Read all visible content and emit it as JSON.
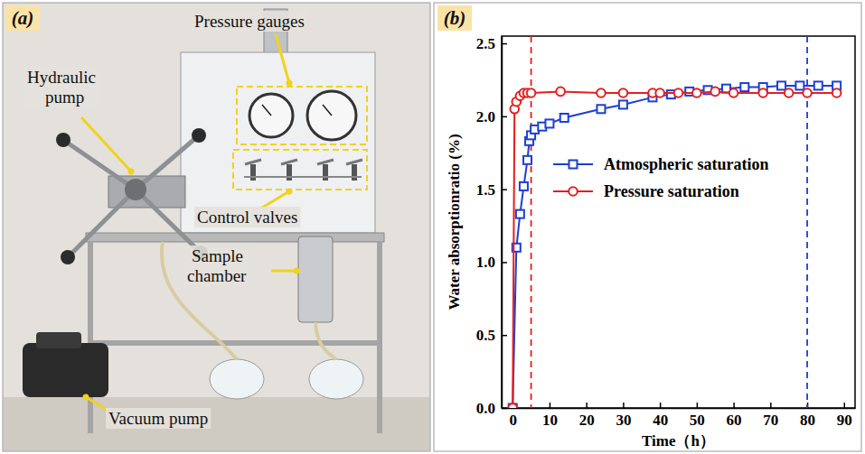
{
  "photo_panel": {
    "panel_label": "(a)",
    "labels": [
      "Pressure gauges",
      "Hydraulic pump",
      "Control valves",
      "Sample chamber",
      "Vacuum pump"
    ]
  },
  "chart_data": {
    "type": "line",
    "panel_label": "(b)",
    "x_label": "Time（h）",
    "y_label": "Water absorptionratio (%)",
    "xlim": [
      -3,
      93
    ],
    "xticks": [
      0,
      10,
      20,
      30,
      40,
      50,
      60,
      70,
      80,
      90
    ],
    "ylim": [
      0,
      2.55
    ],
    "yticks": [
      {
        "value": 0,
        "label": "0.0"
      },
      0.5,
      {
        "value": 1,
        "label": "1.0"
      },
      1.5,
      {
        "value": 2,
        "label": "2.0"
      },
      2.5
    ],
    "legend": "center",
    "grid": false,
    "series": [
      {
        "name": "Atmospheric saturation",
        "color": "#1c3fd6",
        "marker": "square",
        "line_style": "solid",
        "x": [
          0,
          1,
          2,
          3,
          4,
          4.5,
          5,
          6,
          8,
          10,
          14,
          24,
          30,
          38,
          43,
          48,
          53,
          58,
          63,
          68,
          73,
          78,
          83,
          88
        ],
        "values": [
          0,
          1.1,
          1.33,
          1.52,
          1.7,
          1.83,
          1.87,
          1.91,
          1.93,
          1.95,
          1.99,
          2.05,
          2.08,
          2.13,
          2.15,
          2.17,
          2.18,
          2.19,
          2.2,
          2.2,
          2.21,
          2.21,
          2.21,
          2.21
        ]
      },
      {
        "name": "Pressure saturation",
        "color": "#e51e1e",
        "marker": "circle",
        "line_style": "solid",
        "x": [
          0,
          0.5,
          1,
          2,
          3,
          4,
          5,
          13,
          24,
          30,
          38,
          40,
          45,
          50,
          55,
          60,
          68,
          75,
          80,
          88
        ],
        "values": [
          0,
          2.05,
          2.1,
          2.14,
          2.16,
          2.16,
          2.16,
          2.17,
          2.16,
          2.16,
          2.16,
          2.16,
          2.16,
          2.16,
          2.17,
          2.16,
          2.16,
          2.16,
          2.16,
          2.16
        ]
      }
    ],
    "reference_lines": [
      {
        "x": 5,
        "color": "#e51e1e",
        "line_style": "dashed"
      },
      {
        "x": 80,
        "color": "#1c3fd6",
        "line_style": "dashed"
      }
    ]
  }
}
